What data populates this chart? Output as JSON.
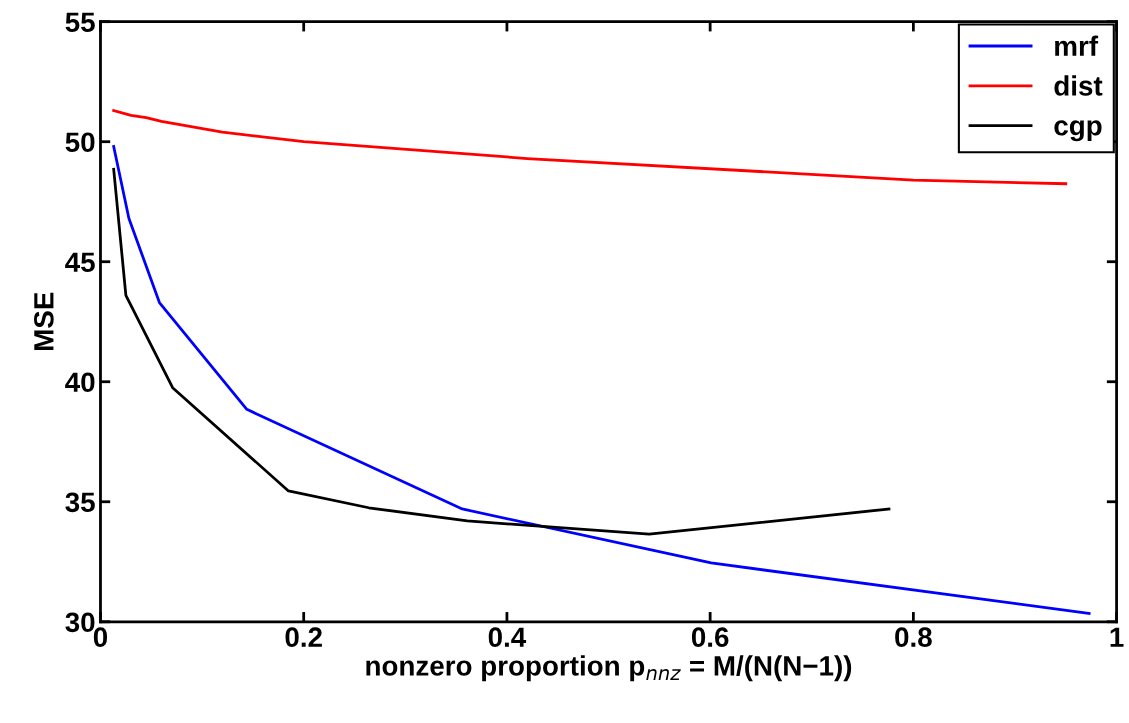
{
  "chart_data": {
    "type": "line",
    "xlabel": "nonzero proportion p$_{nnz}$ = M/(N(N−1))",
    "ylabel": "MSE",
    "xlim": [
      0,
      1
    ],
    "xticks": [
      0,
      0.2,
      0.4,
      0.6,
      0.8,
      1
    ],
    "ylim": [
      30,
      55
    ],
    "yticks": [
      30,
      35,
      40,
      45,
      50,
      55
    ],
    "grid": false,
    "legend": "top right",
    "line_style": "solid",
    "marker": "none",
    "series": [
      {
        "name": "mrf",
        "color": "#0000ff",
        "x": [
          0.013,
          0.028,
          0.058,
          0.144,
          0.356,
          0.601,
          0.973
        ],
        "values": [
          49.8,
          46.8,
          43.3,
          38.85,
          34.7,
          32.45,
          30.35
        ]
      },
      {
        "name": "dist",
        "color": "#ff0000",
        "x": [
          0.013,
          0.03,
          0.045,
          0.06,
          0.12,
          0.2,
          0.42,
          0.8,
          0.95
        ],
        "values": [
          51.3,
          51.1,
          51.0,
          50.85,
          50.4,
          50.0,
          49.3,
          48.4,
          48.25
        ]
      },
      {
        "name": "cgp",
        "color": "#000000",
        "x": [
          0.013,
          0.025,
          0.071,
          0.185,
          0.264,
          0.361,
          0.54,
          0.776
        ],
        "values": [
          48.85,
          43.6,
          39.75,
          35.45,
          34.75,
          34.2,
          33.65,
          34.7
        ]
      }
    ]
  }
}
